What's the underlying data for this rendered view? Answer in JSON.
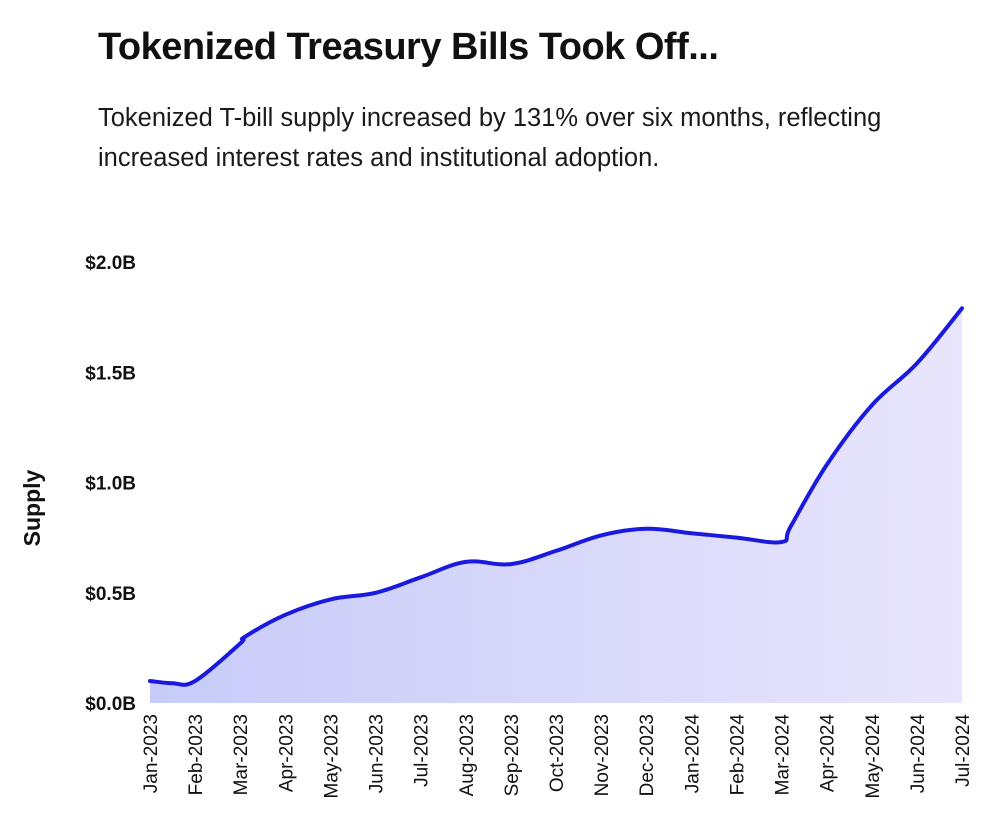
{
  "header": {
    "title": "Tokenized Treasury Bills Took Off...",
    "subtitle": "Tokenized T-bill supply increased by 131% over six months, reflecting increased interest rates and institutional adoption."
  },
  "chart_data": {
    "type": "area",
    "title": "Tokenized Treasury Bills Took Off...",
    "subtitle": "Tokenized T-bill supply increased by 131% over six months, reflecting increased interest rates and institutional adoption.",
    "xlabel": "",
    "ylabel": "Supply",
    "categories": [
      "Jan-2023",
      "Feb-2023",
      "Mar-2023",
      "Apr-2023",
      "May-2023",
      "Jun-2023",
      "Jul-2023",
      "Aug-2023",
      "Sep-2023",
      "Oct-2023",
      "Nov-2023",
      "Dec-2023",
      "Jan-2024",
      "Feb-2024",
      "Mar-2024",
      "Apr-2024",
      "May-2024",
      "Jun-2024",
      "Jul-2024"
    ],
    "x": [
      "Jan-2023",
      "Jan-2023",
      "Feb-2023",
      "Mar-2023",
      "Mar-2023",
      "Apr-2023",
      "May-2023",
      "Jun-2023",
      "Jul-2023",
      "Aug-2023",
      "Sep-2023",
      "Oct-2023",
      "Nov-2023",
      "Dec-2023",
      "Jan-2024",
      "Feb-2024",
      "Mar-2024",
      "Mar-2024",
      "Apr-2024",
      "May-2024",
      "Jun-2024",
      "Jul-2024"
    ],
    "values": [
      0.1,
      0.09,
      0.1,
      0.27,
      0.3,
      0.4,
      0.47,
      0.5,
      0.57,
      0.64,
      0.63,
      0.69,
      0.76,
      0.79,
      0.77,
      0.75,
      0.73,
      0.8,
      1.08,
      1.35,
      1.54,
      1.79
    ],
    "yticks": [
      "$0.0B",
      "$0.5B",
      "$1.0B",
      "$1.5B",
      "$2.0B"
    ],
    "ytick_values": [
      0,
      0.5,
      1.0,
      1.5,
      2.0
    ],
    "ylim": [
      0,
      2.0
    ],
    "unit": "B",
    "grid": false,
    "legend": "none",
    "line_color": "#1a1adf",
    "fill_color_start": "#c8ccf8",
    "fill_color_end": "#e8e4fc"
  }
}
